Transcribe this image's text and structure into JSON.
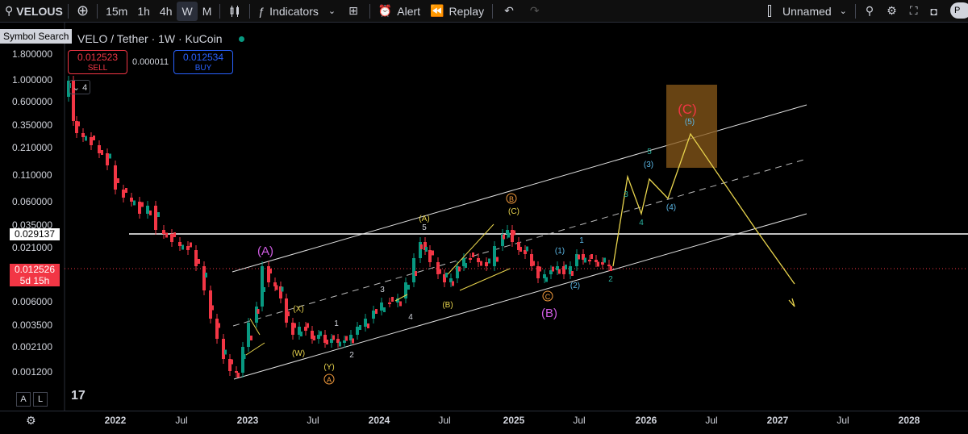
{
  "topbar": {
    "symbol": "VELOUS",
    "add_icon": "plus-circle-icon",
    "timeframes": [
      "15m",
      "1h",
      "4h",
      "W",
      "M"
    ],
    "active_timeframe": "W",
    "chart_type_icon": "candles-icon",
    "indicators_label": "Indicators",
    "templates_icon": "grid-icon",
    "alert_label": "Alert",
    "replay_label": "Replay",
    "layout_name": "Unnamed",
    "right_cut_label": "P"
  },
  "chart": {
    "legend_title": "VELO / Tether · 1W · KuCoin",
    "symbol_search_tooltip": "Symbol Search",
    "sell_price": "0.012523",
    "sell_label": "SELL",
    "spread": "0.000011",
    "buy_price": "0.012534",
    "buy_label": "BUY",
    "collapse_count": "4",
    "horizontal_line_price": "0.029137",
    "last_price": "0.012526",
    "countdown": "5d 15h",
    "price_axis": [
      "1.800000",
      "1.000000",
      "0.600000",
      "0.350000",
      "0.210000",
      "0.110000",
      "0.060000",
      "0.035000",
      "0.021000",
      "0.006000",
      "0.003500",
      "0.002100",
      "0.001200"
    ],
    "time_axis": [
      "2022",
      "Jul",
      "2023",
      "Jul",
      "2024",
      "Jul",
      "2025",
      "Jul",
      "2026",
      "Jul",
      "2027",
      "Jul",
      "2028"
    ],
    "wave_labels": {
      "A_big": "(A)",
      "B_big": "(B)",
      "C_big": "(C)",
      "X": "(X)",
      "W": "(W)",
      "Y": "(Y)",
      "A_circ": "A",
      "B_circ": "B",
      "C_circ": "C",
      "A_small": "(A)",
      "B_small": "(B)",
      "C_small": "(C)",
      "one": "1",
      "two": "2",
      "three": "3",
      "four": "4",
      "five": "5",
      "p1": "(1)",
      "p2": "(2)",
      "p3": "(3)",
      "p4": "(4)",
      "p5": "(5)"
    },
    "scale_buttons": [
      "A",
      "L"
    ],
    "colors": {
      "up": "#089981",
      "down": "#f23645",
      "projection": "#e8d44d",
      "purple": "#d05ce3",
      "blue_label": "#5bb8e8",
      "orange": "#f59c3d",
      "zone": "#8a5a1a"
    }
  }
}
